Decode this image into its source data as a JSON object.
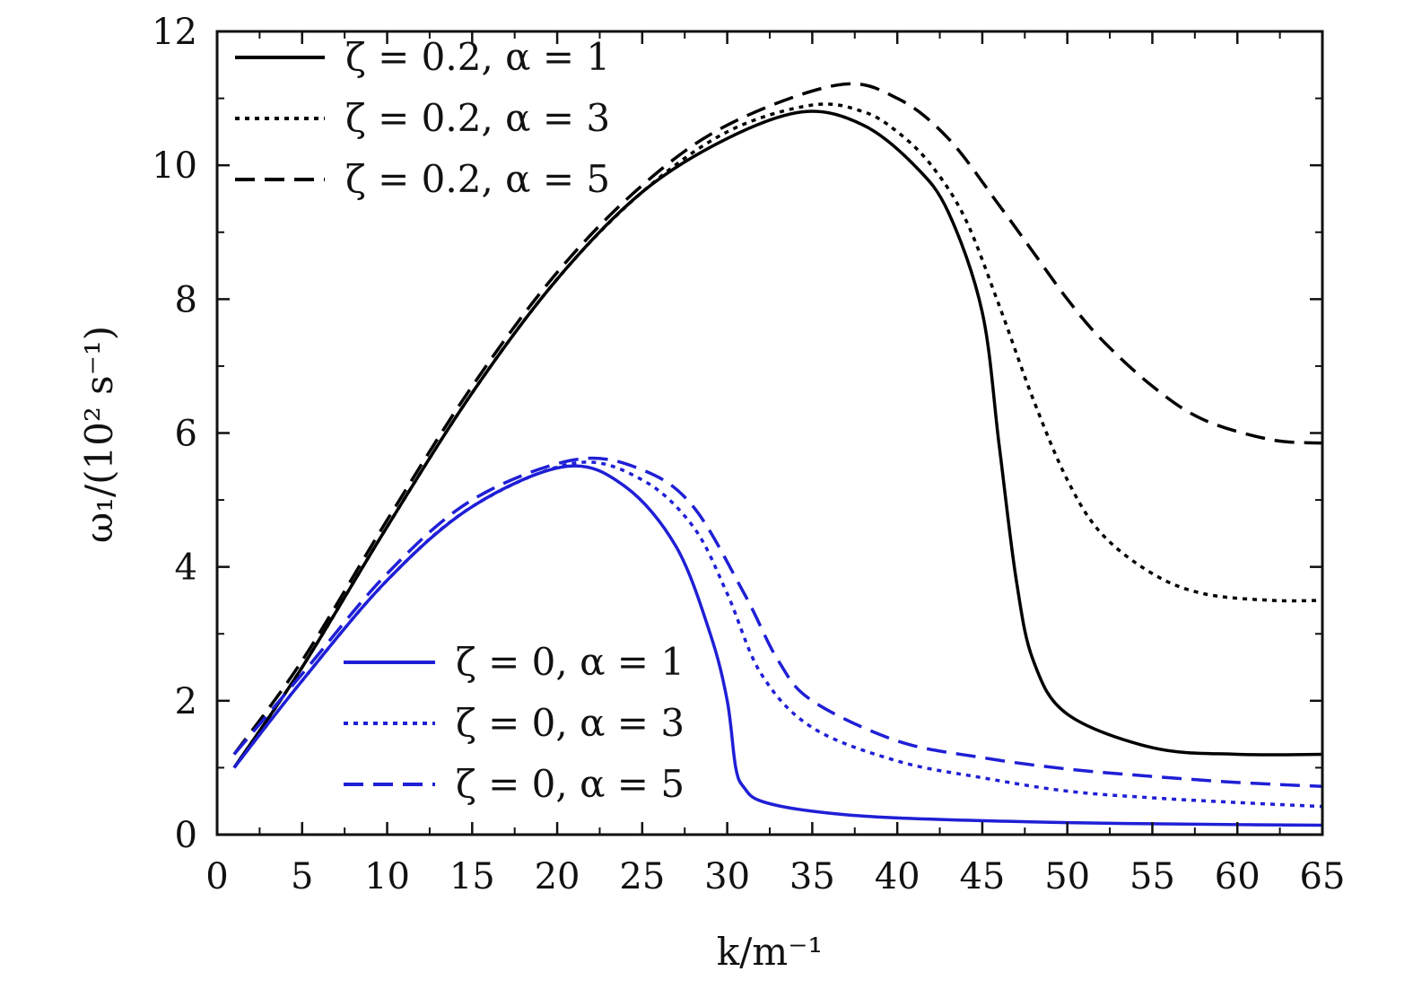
{
  "chart_data": {
    "type": "line",
    "xlabel": "k/m⁻¹",
    "ylabel": "ω₁/(10² s⁻¹)",
    "xlim": [
      0,
      65
    ],
    "ylim": [
      0,
      12
    ],
    "xticks": [
      0,
      5,
      10,
      15,
      20,
      25,
      30,
      35,
      40,
      45,
      50,
      55,
      60,
      65
    ],
    "yticks": [
      0,
      2,
      4,
      6,
      8,
      10,
      12
    ],
    "grid": false,
    "legends": [
      {
        "placement": "top-left",
        "entries": [
          "ζ = 0.2,  α = 1",
          "ζ = 0.2,  α = 3",
          "ζ = 0.2,  α = 5"
        ]
      },
      {
        "placement": "bottom-center",
        "entries": [
          "ζ = 0,  α = 1",
          "ζ = 0,  α = 3",
          "ζ = 0,  α = 5"
        ]
      }
    ],
    "series": [
      {
        "name": "ζ = 0.2,  α = 1",
        "color": "#000000",
        "style": "solid",
        "x": [
          1,
          5,
          10,
          15,
          20,
          25,
          30,
          34.5,
          38,
          41,
          43,
          45,
          46,
          47,
          48,
          50,
          55,
          60,
          65
        ],
        "y": [
          1.0,
          2.5,
          4.6,
          6.6,
          8.3,
          9.6,
          10.4,
          10.8,
          10.6,
          10.0,
          9.3,
          7.8,
          5.8,
          3.8,
          2.6,
          1.8,
          1.3,
          1.2,
          1.2
        ]
      },
      {
        "name": "ζ = 0.2,  α = 3",
        "color": "#000000",
        "style": "dotted",
        "x": [
          1,
          5,
          10,
          15,
          20,
          25,
          30,
          35,
          38,
          40,
          42,
          44,
          46,
          48,
          50,
          52,
          55,
          58,
          62,
          65
        ],
        "y": [
          1.0,
          2.5,
          4.6,
          6.6,
          8.3,
          9.6,
          10.5,
          10.9,
          10.8,
          10.5,
          10.0,
          9.2,
          7.9,
          6.5,
          5.3,
          4.5,
          3.9,
          3.6,
          3.5,
          3.5
        ]
      },
      {
        "name": "ζ = 0.2,  α = 5",
        "color": "#000000",
        "style": "dashed",
        "x": [
          1,
          5,
          10,
          15,
          20,
          25,
          30,
          36.5,
          40,
          43,
          46,
          48,
          50,
          52,
          55,
          58,
          62,
          65
        ],
        "y": [
          1.2,
          2.6,
          4.7,
          6.7,
          8.4,
          9.7,
          10.6,
          11.2,
          11.0,
          10.4,
          9.4,
          8.7,
          8.0,
          7.4,
          6.7,
          6.2,
          5.9,
          5.85
        ]
      },
      {
        "name": "ζ = 0,  α = 1",
        "color": "#1f1fd6",
        "style": "solid",
        "x": [
          1,
          5,
          10,
          15,
          20.5,
          24,
          27,
          29,
          30,
          30.5,
          31,
          32,
          35,
          40,
          50,
          60,
          65
        ],
        "y": [
          1.0,
          2.3,
          3.8,
          4.9,
          5.5,
          5.2,
          4.3,
          3.0,
          2.0,
          1.0,
          0.7,
          0.5,
          0.35,
          0.25,
          0.18,
          0.15,
          0.14
        ]
      },
      {
        "name": "ζ = 0,  α = 3",
        "color": "#1f1fd6",
        "style": "dotted",
        "x": [
          1,
          5,
          10,
          15,
          21,
          25,
          28,
          30,
          32,
          35,
          40,
          45,
          50,
          55,
          60,
          65
        ],
        "y": [
          1.0,
          2.3,
          3.8,
          4.9,
          5.55,
          5.3,
          4.6,
          3.6,
          2.4,
          1.6,
          1.1,
          0.85,
          0.65,
          0.55,
          0.48,
          0.42
        ]
      },
      {
        "name": "ζ = 0,  α = 5",
        "color": "#1f1fd6",
        "style": "dashed",
        "x": [
          1,
          5,
          10,
          15,
          21,
          25,
          28,
          31,
          33,
          35,
          40,
          45,
          50,
          55,
          60,
          65
        ],
        "y": [
          1.2,
          2.4,
          3.9,
          5.0,
          5.6,
          5.45,
          4.9,
          3.6,
          2.6,
          2.0,
          1.4,
          1.15,
          0.98,
          0.87,
          0.78,
          0.72
        ]
      }
    ]
  }
}
